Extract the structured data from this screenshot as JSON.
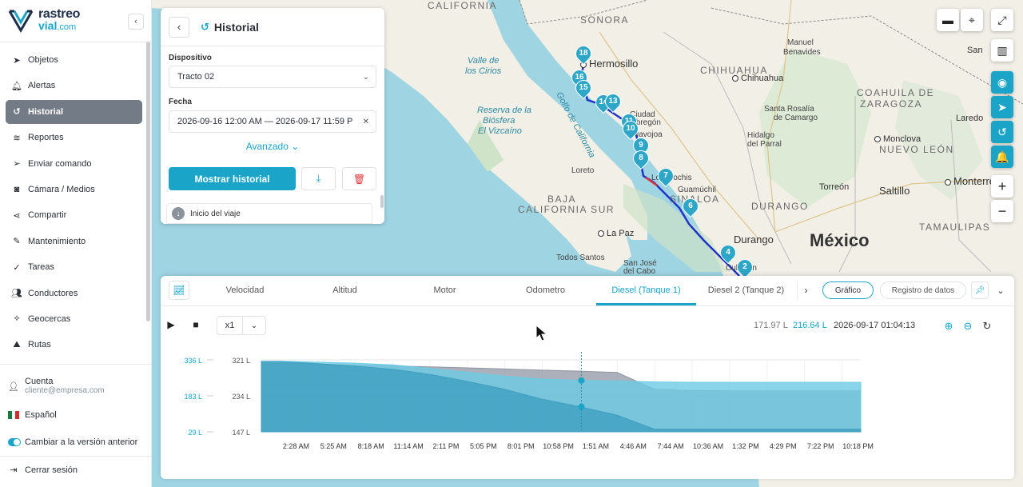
{
  "sidebar": {
    "logo": {
      "line1": "rastreo",
      "line2": "vial",
      "line2_suffix": ".com"
    },
    "items": [
      {
        "label": "Objetos",
        "icon": "location-arrow-icon"
      },
      {
        "label": "Alertas",
        "icon": "bell-icon"
      },
      {
        "label": "Historial",
        "icon": "history-icon",
        "active": true
      },
      {
        "label": "Reportes",
        "icon": "layers-icon"
      },
      {
        "label": "Enviar comando",
        "icon": "send-icon"
      },
      {
        "label": "Cámara / Medios",
        "icon": "camera-icon"
      },
      {
        "label": "Compartir",
        "icon": "share-icon"
      },
      {
        "label": "Mantenimiento",
        "icon": "wrench-icon"
      },
      {
        "label": "Tareas",
        "icon": "checklist-icon"
      },
      {
        "label": "Conductores",
        "icon": "users-icon"
      },
      {
        "label": "Geocercas",
        "icon": "geofence-icon"
      },
      {
        "label": "Rutas",
        "icon": "road-icon"
      }
    ],
    "account": {
      "label": "Cuenta",
      "email": "cliente@empresa.com"
    },
    "language": "Español",
    "switch_version": "Cambiar a la versión anterior",
    "logout": "Cerrar sesión"
  },
  "historial": {
    "title": "Historial",
    "device_label": "Dispositivo",
    "device_value": "Tracto 02",
    "date_label": "Fecha",
    "date_value": "2026-09-16 12:00 AM — 2026-09-17 11:59 P",
    "advanced": "Avanzado",
    "show_button": "Mostrar historial",
    "trip_start": "Inicio del viaje"
  },
  "map": {
    "states": [
      "SONORA",
      "CHIHUAHUA",
      "COAHUILA DE",
      "ZARAGOZA",
      "NUEVO LEÓN",
      "SINALOA",
      "DURANGO",
      "TAMAULIPAS",
      "BAJA",
      "CALIFORNIA SUR",
      "CALIFORNIA"
    ],
    "cities": [
      "Hermosillo",
      "Chihuahua",
      "Monclova",
      "Torreón",
      "Saltillo",
      "Monterrey",
      "Durango",
      "La Paz",
      "Los Mochis",
      "Guamúchil",
      "Navojoa",
      "Manuel",
      "Benavides",
      "Santa Rosalía",
      "de Camargo",
      "Hidalgo",
      "del Parral",
      "Laredo",
      "San",
      "Loreto",
      "Todos Santos",
      "San José",
      "del Cabo",
      "Ciudad",
      "Obregón",
      "Culiacán"
    ],
    "water": [
      "Valle de",
      "los Cirios",
      "Reserva de la",
      "Biósfera",
      "El Vizcaíno",
      "Golfo de California"
    ],
    "country": "México",
    "markers": [
      "18",
      "16",
      "15",
      "14",
      "13",
      "11",
      "10",
      "9",
      "8",
      "7",
      "6",
      "4",
      "2"
    ]
  },
  "bottom": {
    "tabs": [
      "Velocidad",
      "Altitud",
      "Motor",
      "Odometro",
      "Diesel (Tanque 1)",
      "Diesel 2 (Tanque 2)"
    ],
    "active_tab": 4,
    "view_chart": "Gráfico",
    "view_log": "Registro de datos",
    "speed": "x1",
    "readout_gray": "171.97 L",
    "readout_blue": "216.64 L",
    "readout_time": "2026-09-17 01:04:13"
  },
  "chart_data": {
    "type": "area",
    "x": [
      "2:28 AM",
      "5:25 AM",
      "8:18 AM",
      "11:14 AM",
      "2:11 PM",
      "5:05 PM",
      "8:01 PM",
      "10:58 PM",
      "1:51 AM",
      "4:46 AM",
      "7:44 AM",
      "10:36 AM",
      "1:32 PM",
      "4:29 PM",
      "7:22 PM",
      "10:18 PM"
    ],
    "left_axis_ticks": [
      "336 L",
      "183 L",
      "29 L"
    ],
    "right_axis_ticks": [
      "321 L",
      "234 L",
      "147 L"
    ],
    "series": [
      {
        "values": [
          321,
          318,
          314,
          310,
          306,
          302,
          297,
          292,
          288,
          282,
          210,
          205,
          204,
          204,
          204,
          204
        ],
        "color": "#8f95a3"
      },
      {
        "values": [
          330,
          326,
          322,
          315,
          300,
          283,
          267,
          254,
          248,
          246,
          242,
          240,
          240,
          240,
          240,
          240
        ],
        "color": "#6dcbe3"
      },
      {
        "values": [
          329,
          320,
          309,
          296,
          274,
          244,
          210,
          168,
          136,
          100,
          40,
          40,
          40,
          40,
          40,
          40
        ],
        "color": "#3f9fc0"
      }
    ],
    "grid": true
  },
  "colors": {
    "accent": "#1aa4c8",
    "active_nav": "#737b86",
    "route": "#1d35c8"
  }
}
